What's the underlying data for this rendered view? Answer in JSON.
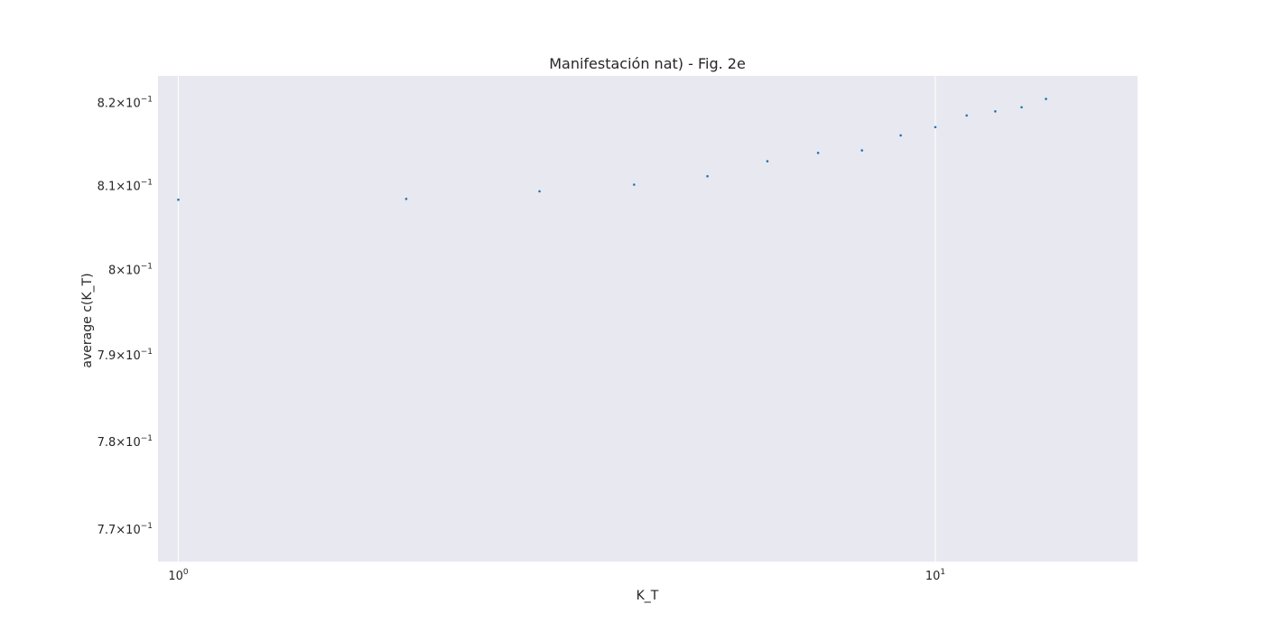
{
  "chart_data": {
    "type": "scatter",
    "title": "Manifestación nat) - Fig. 2e",
    "xlabel": "K_T",
    "ylabel": "average c(K_T)",
    "xscale": "log",
    "yscale": "log",
    "xlim": [
      0.94,
      18.5
    ],
    "ylim": [
      0.7663,
      0.8232
    ],
    "grid": true,
    "background": "#e8e8f0",
    "grid_color": "#ffffff",
    "point_color": "#1f77b4",
    "x_ticks": [
      {
        "value": 1,
        "base": "10",
        "exp": "0"
      },
      {
        "value": 10,
        "base": "10",
        "exp": "1"
      }
    ],
    "y_ticks": [
      {
        "value": 0.82,
        "mant": "8.2",
        "base": "10",
        "exp": "−1"
      },
      {
        "value": 0.81,
        "mant": "8.1",
        "base": "10",
        "exp": "−1"
      },
      {
        "value": 0.8,
        "mant": "8",
        "base": "10",
        "exp": "−1"
      },
      {
        "value": 0.79,
        "mant": "7.9",
        "base": "10",
        "exp": "−1"
      },
      {
        "value": 0.78,
        "mant": "7.8",
        "base": "10",
        "exp": "−1"
      },
      {
        "value": 0.77,
        "mant": "7.7",
        "base": "10",
        "exp": "−1"
      }
    ],
    "series": [
      {
        "x": [
          1,
          2,
          3,
          4,
          5,
          6,
          7,
          8,
          9,
          10,
          11,
          12,
          13,
          14
        ],
        "y": [
          0.8083,
          0.8084,
          0.8093,
          0.8101,
          0.8111,
          0.8129,
          0.8139,
          0.8142,
          0.816,
          0.817,
          0.8184,
          0.8189,
          0.8194,
          0.8204
        ]
      }
    ]
  }
}
